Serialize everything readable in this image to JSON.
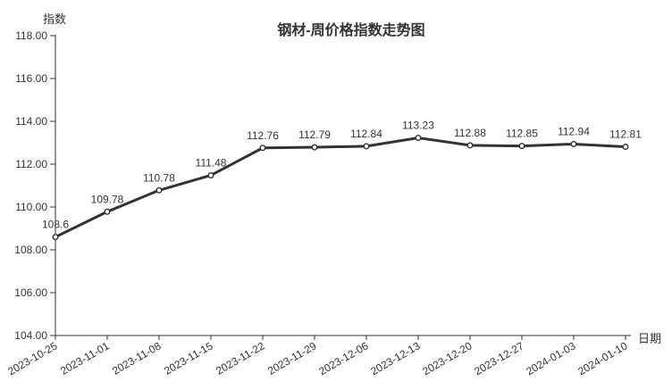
{
  "page": {
    "background": "#ffffff"
  },
  "header": {
    "title": "钢材-周价格指数走势图"
  },
  "chart_data": {
    "type": "line",
    "title": "钢材-周价格指数走势图",
    "ylabel": "指数",
    "xlabel": "日期",
    "categories": [
      "2023-10-25",
      "2023-11-01",
      "2023-11-08",
      "2023-11-15",
      "2023-11-22",
      "2023-11-29",
      "2023-12-06",
      "2023-12-13",
      "2023-12-20",
      "2023-12-27",
      "2024-01-03",
      "2024-01-10"
    ],
    "values": [
      108.6,
      109.78,
      110.78,
      111.48,
      112.76,
      112.79,
      112.84,
      113.23,
      112.88,
      112.85,
      112.94,
      112.81
    ],
    "point_labels": [
      "108.6",
      "109.78",
      "110.78",
      "111.48",
      "112.76",
      "112.79",
      "112.84",
      "113.23",
      "112.88",
      "112.85",
      "112.94",
      "112.81"
    ],
    "ylim": [
      104,
      118
    ],
    "ytick_labels": [
      "104.00",
      "106.00",
      "108.00",
      "110.00",
      "112.00",
      "114.00",
      "116.00",
      "118.00"
    ],
    "x_label_rotation": -30,
    "grid": false,
    "legend": null
  },
  "colors": {
    "line": "#333333",
    "axis": "#333333",
    "text": "#333333",
    "marker_fill": "#ffffff",
    "background": "#ffffff"
  }
}
